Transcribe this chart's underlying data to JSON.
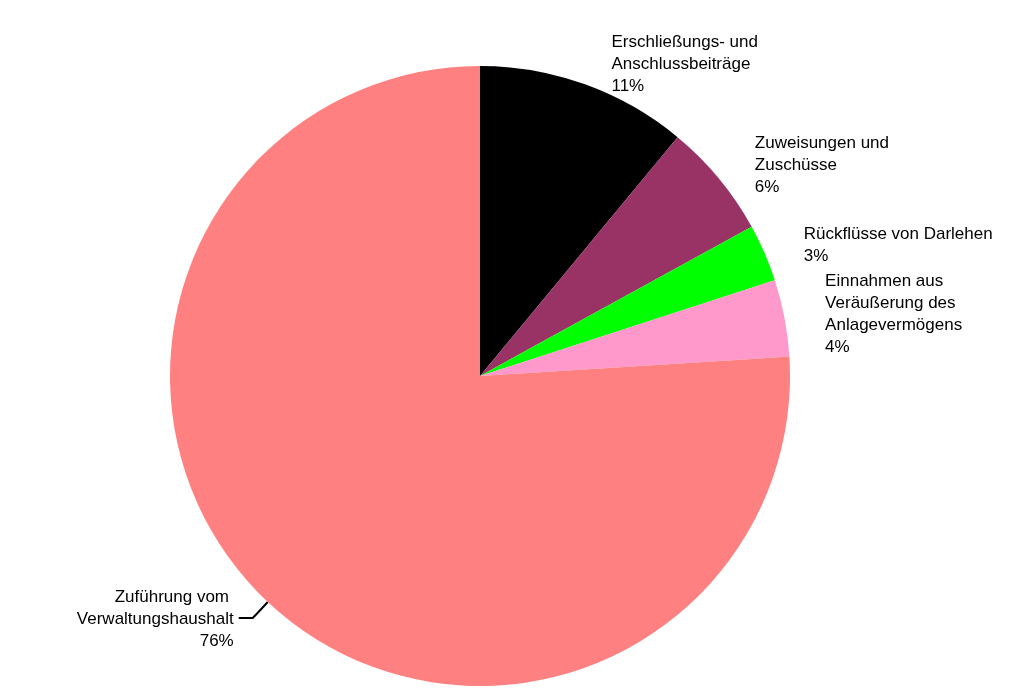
{
  "chart_data": {
    "type": "pie",
    "categories": [
      "Erschließungs- und Anschlussbeiträge",
      "Zuweisungen und Zuschüsse",
      "Rückflüsse von Darlehen",
      "Einnahmen aus Veräußerung des Anlagevermögens",
      "Zuführung vom Verwaltungshaushalt"
    ],
    "values": [
      11,
      6,
      3,
      4,
      76
    ],
    "value_labels": [
      "11%",
      "6%",
      "3%",
      "4%",
      "76%"
    ],
    "colors": [
      "#000000",
      "#993366",
      "#00ff00",
      "#ff99cc",
      "#ff8080"
    ],
    "legend": false
  }
}
